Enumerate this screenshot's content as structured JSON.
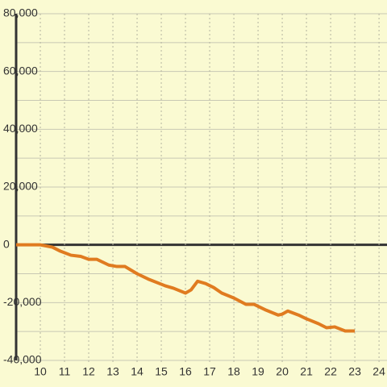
{
  "chart_data": {
    "type": "line",
    "x": [
      9,
      10,
      10.5,
      10.83,
      11.27,
      11.67,
      12,
      12.33,
      12.83,
      13.17,
      13.5,
      14,
      14.5,
      15.17,
      15.5,
      16,
      16.23,
      16.5,
      16.83,
      17.17,
      17.5,
      18,
      18.5,
      18.83,
      19.33,
      19.83,
      20,
      20.23,
      20.67,
      21,
      21.5,
      21.83,
      22.17,
      22.6,
      23
    ],
    "series": [
      {
        "color": "#e07b20",
        "values": [
          0,
          0,
          -800,
          -2200,
          -3600,
          -4000,
          -5000,
          -5000,
          -7000,
          -7500,
          -7500,
          -10000,
          -12000,
          -14200,
          -15000,
          -16700,
          -15600,
          -12600,
          -13400,
          -14800,
          -16700,
          -18400,
          -20600,
          -20600,
          -22600,
          -24300,
          -24000,
          -22900,
          -24300,
          -25600,
          -27300,
          -28700,
          -28400,
          -29800,
          -29800
        ]
      }
    ],
    "xlim": [
      9,
      24.33
    ],
    "xticks": [
      10,
      11,
      12,
      13,
      14,
      15,
      16,
      17,
      18,
      19,
      20,
      21,
      22,
      23,
      24
    ],
    "ylim": [
      -40000,
      80000
    ],
    "yticks": [
      {
        "value": -40000,
        "label": "-40,000"
      },
      {
        "value": -20000,
        "label": "-20,000"
      },
      0,
      {
        "value": 20000,
        "label": "20,000"
      },
      {
        "value": 40000,
        "label": "40,000"
      },
      {
        "value": 60000,
        "label": "60,000"
      },
      {
        "value": 80000,
        "label": "80,000"
      }
    ],
    "y_grid": [
      -30000,
      -10000,
      10000,
      30000,
      50000,
      70000
    ],
    "grid": true
  }
}
